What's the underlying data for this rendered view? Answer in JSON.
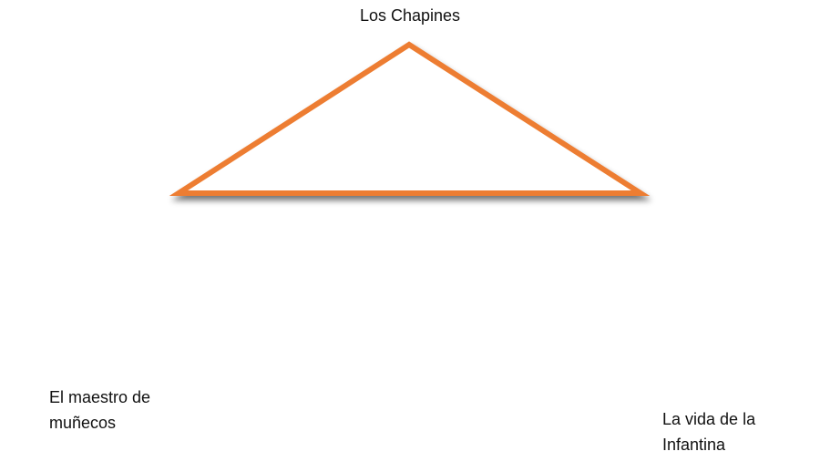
{
  "diagram": {
    "top_label": "Los Chapines",
    "left_label": [
      "El maestro de",
      "muñecos"
    ],
    "right_label": [
      "La vida de la",
      "Infantina"
    ],
    "colors": {
      "triangle_stroke": "#ED7D31",
      "triangle_fill": "#ffffff",
      "text": "#111111",
      "background": "#ffffff"
    }
  }
}
